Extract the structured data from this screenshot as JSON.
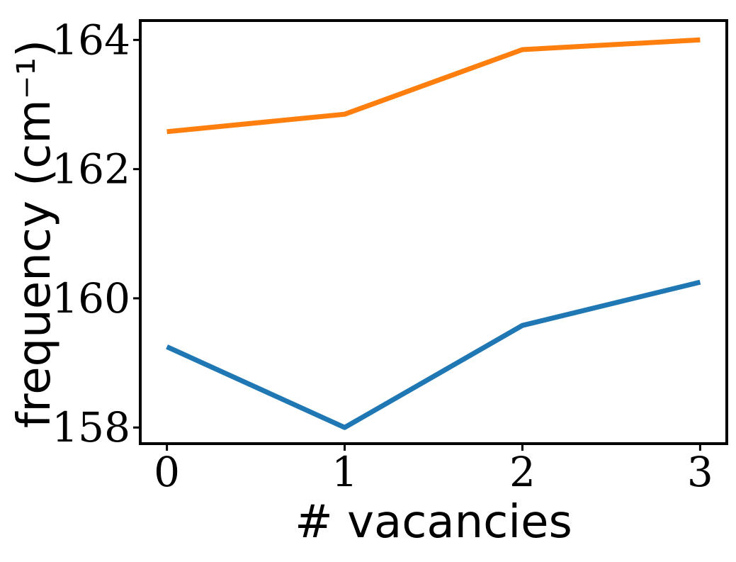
{
  "chart_data": {
    "type": "line",
    "title": "",
    "xlabel": "# vacancies",
    "ylabel": "frequency (cm⁻¹)",
    "x": [
      0,
      1,
      2,
      3
    ],
    "xlim": [
      -0.15,
      3.15
    ],
    "ylim": [
      157.75,
      164.3
    ],
    "xticks": [
      0,
      1,
      2,
      3
    ],
    "yticks": [
      158,
      160,
      162,
      164
    ],
    "grid": false,
    "legend": "none",
    "series": [
      {
        "color": "#1f77b4",
        "values": [
          159.25,
          158.0,
          159.58,
          160.25
        ]
      },
      {
        "color": "#ff7f0e",
        "values": [
          162.58,
          162.85,
          163.85,
          164.0
        ]
      }
    ]
  }
}
